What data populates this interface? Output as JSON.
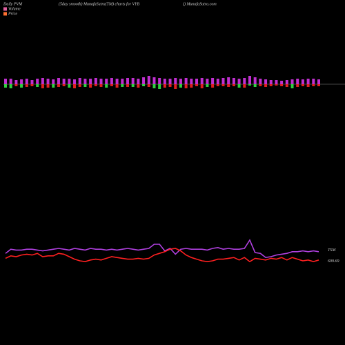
{
  "chart_data": {
    "type": "pvm",
    "title": "Daily PVM",
    "subtitle": "(5day smooth) MunafaSutra(TM) charts for VYB",
    "source": "() MunafaSutra.com",
    "categories": null,
    "bars": {
      "up_color": "#c030d0",
      "range": [
        -20,
        20
      ],
      "up": [
        8,
        8,
        6,
        7,
        8,
        6,
        8,
        9,
        8,
        7,
        9,
        8,
        8,
        7,
        9,
        8,
        8,
        9,
        8,
        8,
        9,
        8,
        8,
        9,
        9,
        8,
        10,
        12,
        10,
        9,
        8,
        8,
        9,
        8,
        9,
        8,
        8,
        9,
        8,
        9,
        8,
        9,
        10,
        9,
        8,
        9,
        12,
        10,
        8,
        7,
        6,
        6,
        5,
        6,
        7,
        8,
        7,
        8,
        8,
        7
      ],
      "down": [
        5,
        6,
        3,
        5,
        4,
        3,
        4,
        6,
        5,
        5,
        4,
        3,
        5,
        6,
        4,
        4,
        5,
        3,
        4,
        5,
        3,
        5,
        4,
        4,
        4,
        5,
        3,
        4,
        6,
        7,
        5,
        4,
        7,
        5,
        6,
        5,
        3,
        6,
        4,
        5,
        3,
        3,
        4,
        3,
        5,
        5,
        2,
        4,
        3,
        4,
        3,
        2,
        3,
        4,
        6,
        4,
        3,
        4,
        3,
        3
      ],
      "down_colors": [
        "#30d040",
        "#30d040",
        "#e02020",
        "#30d040",
        "#e02020",
        "#e02020",
        "#30d040",
        "#e02020",
        "#e02020",
        "#30d040",
        "#e02020",
        "#e02020",
        "#30d040",
        "#e02020",
        "#e02020",
        "#30d040",
        "#e02020",
        "#e02020",
        "#e02020",
        "#30d040",
        "#e02020",
        "#e02020",
        "#30d040",
        "#e02020",
        "#30d040",
        "#e02020",
        "#30d040",
        "#e02020",
        "#30d040",
        "#30d040",
        "#e02020",
        "#e02020",
        "#e02020",
        "#30d040",
        "#e02020",
        "#e02020",
        "#e02020",
        "#e02020",
        "#30d040",
        "#e02020",
        "#e02020",
        "#e02020",
        "#e02020",
        "#e02020",
        "#30d040",
        "#e02020",
        "#30d040",
        "#30d040",
        "#e02020",
        "#e02020",
        "#e02020",
        "#e02020",
        "#e02020",
        "#e02020",
        "#30d040",
        "#e02020",
        "#e02020",
        "#e02020",
        "#e02020",
        "#e02020"
      ]
    },
    "legend": [
      {
        "name": "Volume",
        "color": "#e060a0"
      },
      {
        "name": "Price",
        "color": "#ff7030"
      }
    ],
    "ylim": [
      0,
      100
    ],
    "series": [
      {
        "label": "TSM",
        "color": "#b040e0",
        "values": [
          44,
          49,
          48,
          48,
          49,
          49,
          48,
          47,
          48,
          49,
          50,
          49,
          48,
          50,
          49,
          48,
          50,
          49,
          49,
          48,
          49,
          48,
          49,
          50,
          49,
          48,
          49,
          50,
          55,
          55,
          47,
          50,
          43,
          49,
          50,
          49,
          49,
          49,
          48,
          50,
          51,
          49,
          50,
          49,
          49,
          50,
          60,
          45,
          44,
          39,
          40,
          42,
          43,
          44,
          46,
          46,
          47,
          46,
          47,
          46
        ]
      },
      {
        "label": "699.69",
        "color": "#ff2020",
        "values": [
          38,
          41,
          40,
          42,
          43,
          42,
          44,
          40,
          41,
          41,
          44,
          43,
          40,
          37,
          35,
          34,
          36,
          37,
          36,
          38,
          40,
          39,
          38,
          37,
          37,
          38,
          37,
          38,
          42,
          44,
          46,
          49,
          50,
          47,
          42,
          39,
          37,
          35,
          34,
          35,
          37,
          37,
          38,
          39,
          36,
          39,
          34,
          38,
          37,
          36,
          38,
          37,
          39,
          36,
          39,
          37,
          35,
          36,
          34,
          36
        ]
      }
    ]
  }
}
